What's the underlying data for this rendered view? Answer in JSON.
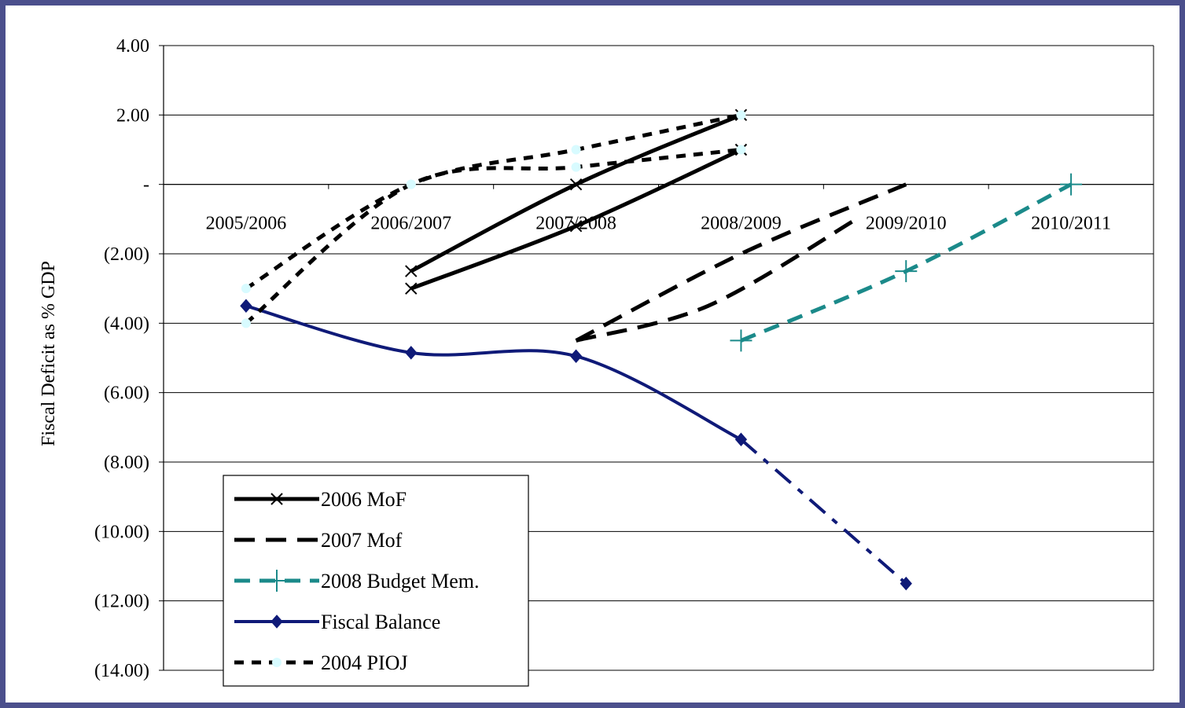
{
  "chart_data": {
    "type": "line",
    "ylabel": "Fiscal Deficit as % GDP",
    "xlabel": "",
    "title": "",
    "categories": [
      "2005/2006",
      "2006/2007",
      "2007/2008",
      "2008/2009",
      "2009/2010",
      "2010/2011"
    ],
    "ylim": [
      -14,
      4
    ],
    "yticks": [
      {
        "value": 4,
        "label": "4.00"
      },
      {
        "value": 2,
        "label": "2.00"
      },
      {
        "value": 0,
        "label": "-"
      },
      {
        "value": -2,
        "label": "(2.00)"
      },
      {
        "value": -4,
        "label": "(4.00)"
      },
      {
        "value": -6,
        "label": "(6.00)"
      },
      {
        "value": -8,
        "label": "(8.00)"
      },
      {
        "value": -10,
        "label": "(10.00)"
      },
      {
        "value": -12,
        "label": "(12.00)"
      },
      {
        "value": -14,
        "label": "(14.00)"
      }
    ],
    "grid": true,
    "legend_position": "bottom-left",
    "series": [
      {
        "name": "2006 MoF",
        "color": "#000000",
        "dash": "solid",
        "marker": "x",
        "curves": [
          [
            [
              1,
              -2.5
            ],
            [
              2,
              0
            ],
            [
              3,
              2
            ]
          ],
          [
            [
              1,
              -3
            ],
            [
              2,
              -1.2
            ],
            [
              3,
              1
            ]
          ]
        ]
      },
      {
        "name": "2007 Mof",
        "color": "#000000",
        "dash": "longdash",
        "marker": "none",
        "curves": [
          [
            [
              2,
              -4.5
            ],
            [
              3,
              -2
            ],
            [
              4,
              0
            ]
          ],
          [
            [
              2,
              -4.5
            ],
            [
              2.8,
              -3.5
            ],
            [
              3.7,
              -1
            ]
          ]
        ]
      },
      {
        "name": "2008 Budget Mem.",
        "color": "#1b8a8a",
        "dash": "dash",
        "marker": "plus",
        "curves": [
          [
            [
              3,
              -4.5
            ],
            [
              4,
              -2.5
            ],
            [
              5,
              0
            ]
          ]
        ]
      },
      {
        "name": "Fiscal Balance",
        "color": "#0f1a78",
        "dash": "solid",
        "marker": "diamond",
        "curves": [
          [
            [
              0,
              -3.5
            ],
            [
              1,
              -4.85
            ],
            [
              2,
              -4.95
            ],
            [
              3,
              -7.35
            ]
          ],
          [
            [
              3,
              -7.35
            ],
            [
              4,
              -11.5
            ]
          ]
        ],
        "curve_dashes": [
          "solid",
          "dashdot"
        ]
      },
      {
        "name": "2004 PIOJ",
        "color": "#000000",
        "dash": "dot",
        "marker": "circle",
        "marker_color": "#d8fbff",
        "curves": [
          [
            [
              0,
              -3
            ],
            [
              1,
              0
            ],
            [
              2,
              1
            ],
            [
              3,
              2
            ]
          ],
          [
            [
              0,
              -4
            ],
            [
              1,
              0
            ],
            [
              2,
              0.5
            ],
            [
              3,
              1
            ]
          ]
        ]
      }
    ]
  }
}
